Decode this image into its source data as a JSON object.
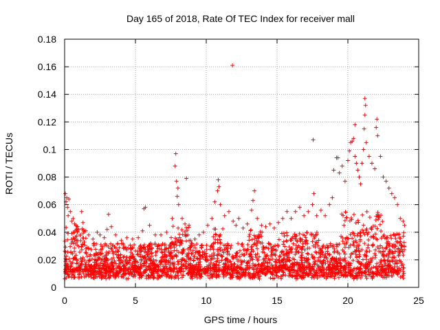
{
  "chart_data": {
    "type": "scatter",
    "title": "Day 165 of 2018, Rate Of TEC Index for receiver mall",
    "xlabel": "GPS time / hours",
    "ylabel": "ROTI / TECUs",
    "xlim": [
      0,
      25
    ],
    "ylim": [
      0,
      0.18
    ],
    "xticks": [
      0,
      5,
      10,
      15,
      20,
      25
    ],
    "xtick_labels": [
      "0",
      "5",
      "10",
      "15",
      "20",
      "25"
    ],
    "yticks": [
      0,
      0.02,
      0.04,
      0.06,
      0.08,
      0.1,
      0.12,
      0.14,
      0.16,
      0.18
    ],
    "ytick_labels": [
      "0",
      "0.02",
      "0.04",
      "0.06",
      "0.08",
      "0.1",
      "0.12",
      "0.14",
      "0.16",
      "0.18"
    ],
    "grid": true,
    "marker": "+",
    "color": "#ff0000",
    "series": [
      {
        "name": "ROTI",
        "x": [
          0.05,
          0.1,
          0.15,
          0.2,
          0.25,
          0.3,
          0.4,
          0.5,
          0.6,
          0.7,
          0.8,
          0.9,
          1.0,
          1.1,
          1.2,
          1.3,
          1.5,
          1.7,
          2.0,
          2.3,
          2.5,
          2.8,
          3.0,
          3.1,
          3.3,
          3.6,
          4.0,
          4.4,
          4.8,
          5.2,
          5.5,
          5.6,
          5.7,
          6.0,
          6.4,
          6.8,
          7.2,
          7.6,
          7.8,
          7.85,
          7.9,
          7.95,
          8.0,
          8.05,
          8.3,
          8.5,
          8.7,
          8.9,
          9.2,
          9.5,
          9.8,
          10.1,
          10.4,
          10.6,
          10.8,
          10.85,
          10.9,
          11.0,
          11.3,
          11.6,
          11.9,
          12.1,
          12.3,
          12.6,
          12.9,
          13.2,
          13.3,
          13.4,
          13.6,
          13.9,
          14.2,
          14.5,
          14.8,
          15.1,
          15.4,
          15.7,
          16.0,
          16.3,
          16.6,
          16.9,
          17.2,
          17.5,
          17.6,
          17.8,
          18.1,
          18.4,
          18.7,
          18.9,
          19.0,
          19.2,
          19.4,
          19.6,
          19.8,
          20.0,
          20.1,
          20.2,
          20.3,
          20.4,
          20.5,
          20.6,
          20.7,
          20.8,
          20.9,
          21.0,
          21.1,
          21.15,
          21.2,
          21.3,
          21.5,
          21.7,
          21.9,
          22.0,
          22.05,
          22.1,
          22.3,
          22.5,
          22.7,
          22.9,
          23.1,
          23.3,
          23.5,
          23.7,
          23.9,
          24.0,
          11.85,
          17.55,
          19.3,
          8.6,
          21.2,
          21.25,
          20.5
        ],
        "y": [
          0.068,
          0.062,
          0.065,
          0.058,
          0.052,
          0.064,
          0.055,
          0.048,
          0.05,
          0.046,
          0.045,
          0.04,
          0.042,
          0.038,
          0.055,
          0.047,
          0.041,
          0.038,
          0.035,
          0.04,
          0.038,
          0.036,
          0.042,
          0.053,
          0.044,
          0.038,
          0.034,
          0.036,
          0.035,
          0.036,
          0.041,
          0.057,
          0.058,
          0.045,
          0.038,
          0.038,
          0.04,
          0.05,
          0.088,
          0.097,
          0.077,
          0.066,
          0.072,
          0.06,
          0.05,
          0.046,
          0.038,
          0.034,
          0.035,
          0.038,
          0.04,
          0.045,
          0.05,
          0.062,
          0.07,
          0.078,
          0.073,
          0.06,
          0.052,
          0.055,
          0.048,
          0.045,
          0.05,
          0.043,
          0.046,
          0.056,
          0.063,
          0.07,
          0.05,
          0.045,
          0.044,
          0.046,
          0.043,
          0.047,
          0.05,
          0.055,
          0.05,
          0.055,
          0.058,
          0.052,
          0.055,
          0.06,
          0.068,
          0.052,
          0.056,
          0.052,
          0.06,
          0.065,
          0.085,
          0.094,
          0.083,
          0.088,
          0.077,
          0.092,
          0.099,
          0.105,
          0.106,
          0.108,
          0.095,
          0.09,
          0.085,
          0.08,
          0.075,
          0.09,
          0.1,
          0.115,
          0.125,
          0.105,
          0.095,
          0.09,
          0.086,
          0.116,
          0.122,
          0.11,
          0.095,
          0.08,
          0.077,
          0.072,
          0.068,
          0.065,
          0.06,
          0.05,
          0.048,
          0.045,
          0.161,
          0.107,
          0.094,
          0.079,
          0.137,
          0.132,
          0.118
        ]
      }
    ]
  }
}
